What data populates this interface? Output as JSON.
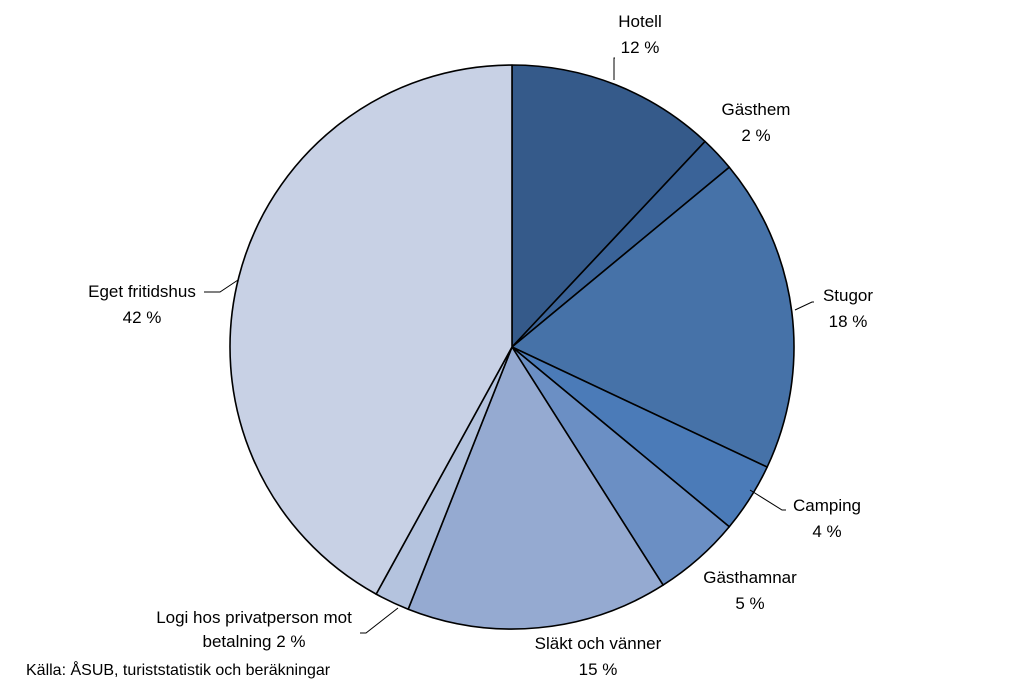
{
  "chart_data": {
    "type": "pie",
    "title": "",
    "start_angle_deg": 0,
    "direction": "clockwise",
    "slice_stroke": "#000000",
    "slices": [
      {
        "name": "Hotell",
        "value": 12,
        "value_label": "12 %",
        "color": "#355A8A"
      },
      {
        "name": "Gästhem",
        "value": 2,
        "value_label": "2 %",
        "color": "#3A6398"
      },
      {
        "name": "Stugor",
        "value": 18,
        "value_label": "18 %",
        "color": "#4672A8"
      },
      {
        "name": "Camping",
        "value": 4,
        "value_label": "4 %",
        "color": "#4B7BB8"
      },
      {
        "name": "Gästhamnar",
        "value": 5,
        "value_label": "5 %",
        "color": "#6B8FC4"
      },
      {
        "name": "Släkt och vänner",
        "value": 15,
        "value_label": "15 %",
        "color": "#95AAD1"
      },
      {
        "name": "Logi hos privatperson mot betalning",
        "value": 2,
        "value_label": "2 %",
        "color": "#B4C3DE"
      },
      {
        "name": "Eget fritidshus",
        "value": 42,
        "value_label": "42 %",
        "color": "#C8D1E5"
      }
    ],
    "source": "Källa: ÅSUB, turiststatistik och beräkningar"
  }
}
